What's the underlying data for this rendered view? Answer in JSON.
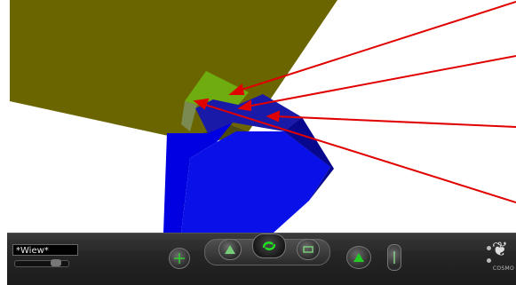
{
  "viewer": {
    "viewpoint_label": "*Wiew*",
    "brand_label": "COSMO",
    "logo_glyph": "❦"
  },
  "scene": {
    "objects": [
      {
        "name": "large-slab",
        "color": "#6b6500"
      },
      {
        "name": "green-cube",
        "color": "#6eac10"
      },
      {
        "name": "blue-box",
        "color": "#0a0ad8"
      }
    ],
    "callout_color": "#e00000"
  },
  "icons": {
    "left_button": "crosshair-icon",
    "walk_button": "walk-icon",
    "turn_button": "turn-arrows-icon",
    "pan_button": "pan-icon",
    "tilt_button": "tilt-icon",
    "straighten_button": "straighten-icon"
  }
}
